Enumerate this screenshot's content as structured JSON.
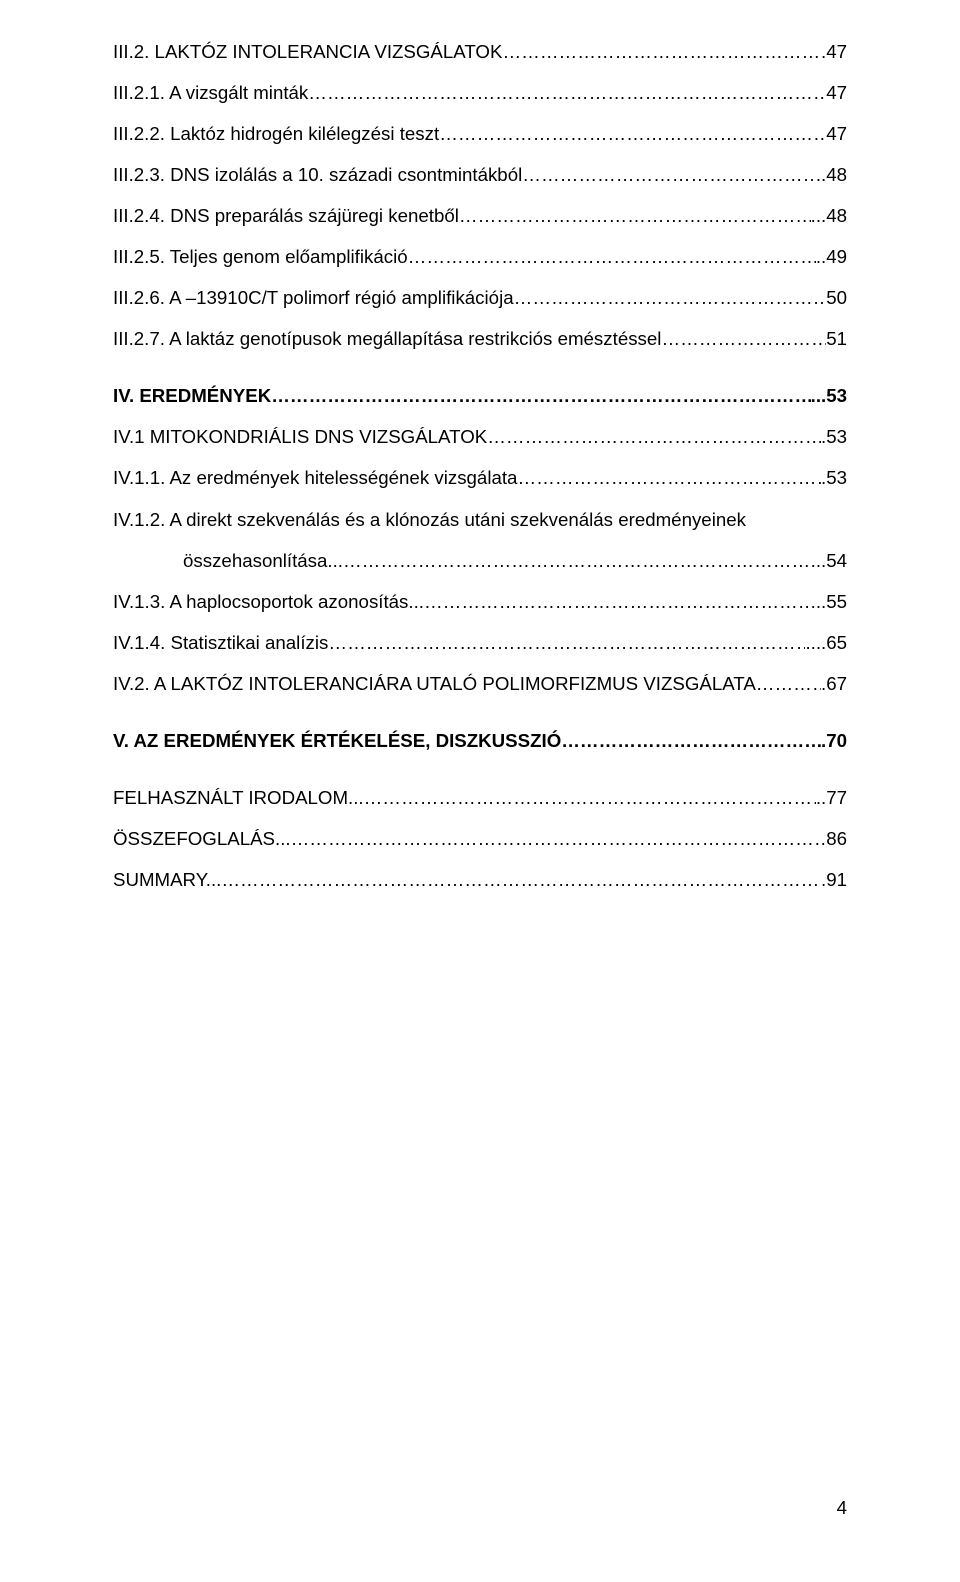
{
  "toc": [
    {
      "label": "III.2. LAKTÓZ INTOLERANCIA VIZSGÁLATOK",
      "page": ".47",
      "bold": false,
      "indent": 0,
      "gapAfter": 0
    },
    {
      "label": "III.2.1. A vizsgált minták",
      "page": "47",
      "bold": false,
      "indent": 0,
      "gapAfter": 0
    },
    {
      "label": "III.2.2. Laktóz hidrogén kilélegzési teszt",
      "page": "47",
      "bold": false,
      "indent": 0,
      "gapAfter": 0
    },
    {
      "label": "III.2.3. DNS izolálás a 10. századi csontmintákból",
      "page": "..48",
      "bold": false,
      "indent": 0,
      "gapAfter": 0
    },
    {
      "label": "III.2.4. DNS preparálás szájüregi kenetből",
      "page": "...48",
      "bold": false,
      "indent": 0,
      "gapAfter": 0
    },
    {
      "label": "III.2.5. Teljes genom előamplifikáció",
      "page": "..49",
      "bold": false,
      "indent": 0,
      "gapAfter": 0
    },
    {
      "label": "III.2.6. A –13910C/T polimorf régió amplifikációja",
      "page": "50",
      "bold": false,
      "indent": 0,
      "gapAfter": 0
    },
    {
      "label": "III.2.7. A laktáz genotípusok megállapítása restrikciós emésztéssel",
      "page": "51",
      "bold": false,
      "indent": 0,
      "gapAfter": 1
    },
    {
      "label": "IV. EREDMÉNYEK",
      "page": "...53",
      "bold": true,
      "indent": 0,
      "gapAfter": 0
    },
    {
      "label": "IV.1 MITOKONDRIÁLIS DNS VIZSGÁLATOK",
      "page": ".53",
      "bold": false,
      "indent": 0,
      "gapAfter": 0
    },
    {
      "label": "IV.1.1. Az eredmények hitelességének vizsgálata",
      "page": ".53",
      "bold": false,
      "indent": 0,
      "gapAfter": 0
    },
    {
      "label": "IV.1.2. A direkt szekvenálás és a klónozás utáni szekvenálás eredményeinek",
      "page": "",
      "bold": false,
      "indent": 0,
      "gapAfter": 0,
      "noDots": true
    },
    {
      "label": "összehasonlítása...",
      "page": "...54",
      "bold": false,
      "indent": 1,
      "gapAfter": 0
    },
    {
      "label": "IV.1.3. A haplocsoportok azonosítás...",
      "page": "...55",
      "bold": false,
      "indent": 0,
      "gapAfter": 0
    },
    {
      "label": "IV.1.4. Statisztikai analízis",
      "page": "....65",
      "bold": false,
      "indent": 0,
      "gapAfter": 0
    },
    {
      "label": "IV.2. A LAKTÓZ INTOLERANCIÁRA UTALÓ POLIMORFIZMUS VIZSGÁLATA",
      "page": ".67",
      "bold": false,
      "indent": 0,
      "gapAfter": 1
    },
    {
      "label": "V. AZ EREDMÉNYEK ÉRTÉKELÉSE, DISZKUSSZIÓ",
      "page": ".70",
      "bold": true,
      "indent": 0,
      "gapAfter": 1
    },
    {
      "label": "FELHASZNÁLT IRODALOM...",
      "page": "..77",
      "bold": false,
      "indent": 0,
      "gapAfter": 0
    },
    {
      "label": "ÖSSZEFOGLALÁS...",
      "page": "86",
      "bold": false,
      "indent": 0,
      "gapAfter": 0
    },
    {
      "label": "SUMMARY...",
      "page": ".91",
      "bold": false,
      "indent": 0,
      "gapAfter": 0
    }
  ],
  "pageNumber": "4"
}
